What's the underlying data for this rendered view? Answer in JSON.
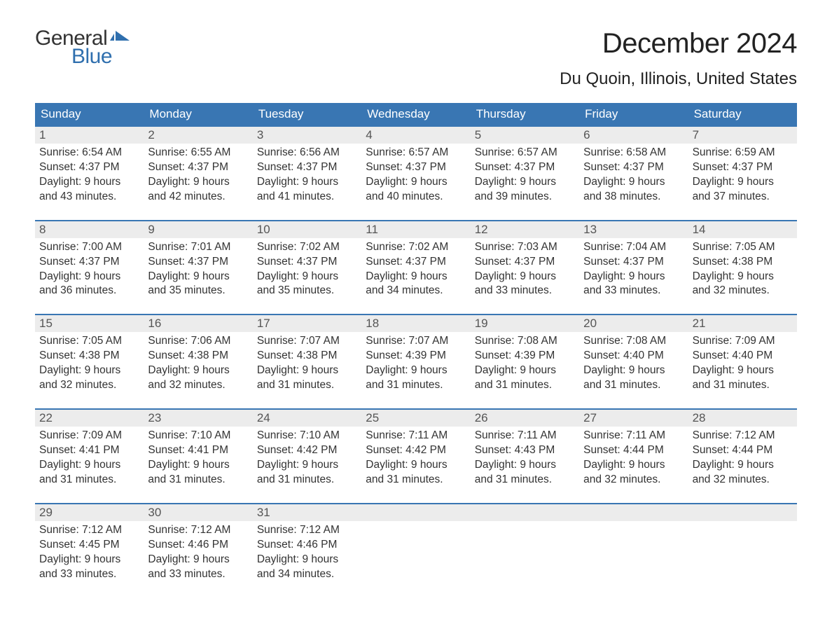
{
  "logo": {
    "text_general": "General",
    "text_blue": "Blue",
    "flag_color": "#2f6fae"
  },
  "header": {
    "month_title": "December 2024",
    "location": "Du Quoin, Illinois, United States"
  },
  "styling": {
    "page_bg": "#ffffff",
    "header_bar_bg": "#3976b3",
    "header_bar_text": "#ffffff",
    "daynum_bg": "#ececec",
    "daynum_text": "#555555",
    "body_text": "#333333",
    "week_border": "#3976b3",
    "title_fontsize": 40,
    "location_fontsize": 24,
    "dow_fontsize": 17,
    "daynum_fontsize": 17,
    "body_fontsize": 15.5,
    "columns": 7
  },
  "days_of_week": [
    "Sunday",
    "Monday",
    "Tuesday",
    "Wednesday",
    "Thursday",
    "Friday",
    "Saturday"
  ],
  "weeks": [
    [
      {
        "n": "1",
        "sunrise": "Sunrise: 6:54 AM",
        "sunset": "Sunset: 4:37 PM",
        "d1": "Daylight: 9 hours",
        "d2": "and 43 minutes."
      },
      {
        "n": "2",
        "sunrise": "Sunrise: 6:55 AM",
        "sunset": "Sunset: 4:37 PM",
        "d1": "Daylight: 9 hours",
        "d2": "and 42 minutes."
      },
      {
        "n": "3",
        "sunrise": "Sunrise: 6:56 AM",
        "sunset": "Sunset: 4:37 PM",
        "d1": "Daylight: 9 hours",
        "d2": "and 41 minutes."
      },
      {
        "n": "4",
        "sunrise": "Sunrise: 6:57 AM",
        "sunset": "Sunset: 4:37 PM",
        "d1": "Daylight: 9 hours",
        "d2": "and 40 minutes."
      },
      {
        "n": "5",
        "sunrise": "Sunrise: 6:57 AM",
        "sunset": "Sunset: 4:37 PM",
        "d1": "Daylight: 9 hours",
        "d2": "and 39 minutes."
      },
      {
        "n": "6",
        "sunrise": "Sunrise: 6:58 AM",
        "sunset": "Sunset: 4:37 PM",
        "d1": "Daylight: 9 hours",
        "d2": "and 38 minutes."
      },
      {
        "n": "7",
        "sunrise": "Sunrise: 6:59 AM",
        "sunset": "Sunset: 4:37 PM",
        "d1": "Daylight: 9 hours",
        "d2": "and 37 minutes."
      }
    ],
    [
      {
        "n": "8",
        "sunrise": "Sunrise: 7:00 AM",
        "sunset": "Sunset: 4:37 PM",
        "d1": "Daylight: 9 hours",
        "d2": "and 36 minutes."
      },
      {
        "n": "9",
        "sunrise": "Sunrise: 7:01 AM",
        "sunset": "Sunset: 4:37 PM",
        "d1": "Daylight: 9 hours",
        "d2": "and 35 minutes."
      },
      {
        "n": "10",
        "sunrise": "Sunrise: 7:02 AM",
        "sunset": "Sunset: 4:37 PM",
        "d1": "Daylight: 9 hours",
        "d2": "and 35 minutes."
      },
      {
        "n": "11",
        "sunrise": "Sunrise: 7:02 AM",
        "sunset": "Sunset: 4:37 PM",
        "d1": "Daylight: 9 hours",
        "d2": "and 34 minutes."
      },
      {
        "n": "12",
        "sunrise": "Sunrise: 7:03 AM",
        "sunset": "Sunset: 4:37 PM",
        "d1": "Daylight: 9 hours",
        "d2": "and 33 minutes."
      },
      {
        "n": "13",
        "sunrise": "Sunrise: 7:04 AM",
        "sunset": "Sunset: 4:37 PM",
        "d1": "Daylight: 9 hours",
        "d2": "and 33 minutes."
      },
      {
        "n": "14",
        "sunrise": "Sunrise: 7:05 AM",
        "sunset": "Sunset: 4:38 PM",
        "d1": "Daylight: 9 hours",
        "d2": "and 32 minutes."
      }
    ],
    [
      {
        "n": "15",
        "sunrise": "Sunrise: 7:05 AM",
        "sunset": "Sunset: 4:38 PM",
        "d1": "Daylight: 9 hours",
        "d2": "and 32 minutes."
      },
      {
        "n": "16",
        "sunrise": "Sunrise: 7:06 AM",
        "sunset": "Sunset: 4:38 PM",
        "d1": "Daylight: 9 hours",
        "d2": "and 32 minutes."
      },
      {
        "n": "17",
        "sunrise": "Sunrise: 7:07 AM",
        "sunset": "Sunset: 4:38 PM",
        "d1": "Daylight: 9 hours",
        "d2": "and 31 minutes."
      },
      {
        "n": "18",
        "sunrise": "Sunrise: 7:07 AM",
        "sunset": "Sunset: 4:39 PM",
        "d1": "Daylight: 9 hours",
        "d2": "and 31 minutes."
      },
      {
        "n": "19",
        "sunrise": "Sunrise: 7:08 AM",
        "sunset": "Sunset: 4:39 PM",
        "d1": "Daylight: 9 hours",
        "d2": "and 31 minutes."
      },
      {
        "n": "20",
        "sunrise": "Sunrise: 7:08 AM",
        "sunset": "Sunset: 4:40 PM",
        "d1": "Daylight: 9 hours",
        "d2": "and 31 minutes."
      },
      {
        "n": "21",
        "sunrise": "Sunrise: 7:09 AM",
        "sunset": "Sunset: 4:40 PM",
        "d1": "Daylight: 9 hours",
        "d2": "and 31 minutes."
      }
    ],
    [
      {
        "n": "22",
        "sunrise": "Sunrise: 7:09 AM",
        "sunset": "Sunset: 4:41 PM",
        "d1": "Daylight: 9 hours",
        "d2": "and 31 minutes."
      },
      {
        "n": "23",
        "sunrise": "Sunrise: 7:10 AM",
        "sunset": "Sunset: 4:41 PM",
        "d1": "Daylight: 9 hours",
        "d2": "and 31 minutes."
      },
      {
        "n": "24",
        "sunrise": "Sunrise: 7:10 AM",
        "sunset": "Sunset: 4:42 PM",
        "d1": "Daylight: 9 hours",
        "d2": "and 31 minutes."
      },
      {
        "n": "25",
        "sunrise": "Sunrise: 7:11 AM",
        "sunset": "Sunset: 4:42 PM",
        "d1": "Daylight: 9 hours",
        "d2": "and 31 minutes."
      },
      {
        "n": "26",
        "sunrise": "Sunrise: 7:11 AM",
        "sunset": "Sunset: 4:43 PM",
        "d1": "Daylight: 9 hours",
        "d2": "and 31 minutes."
      },
      {
        "n": "27",
        "sunrise": "Sunrise: 7:11 AM",
        "sunset": "Sunset: 4:44 PM",
        "d1": "Daylight: 9 hours",
        "d2": "and 32 minutes."
      },
      {
        "n": "28",
        "sunrise": "Sunrise: 7:12 AM",
        "sunset": "Sunset: 4:44 PM",
        "d1": "Daylight: 9 hours",
        "d2": "and 32 minutes."
      }
    ],
    [
      {
        "n": "29",
        "sunrise": "Sunrise: 7:12 AM",
        "sunset": "Sunset: 4:45 PM",
        "d1": "Daylight: 9 hours",
        "d2": "and 33 minutes."
      },
      {
        "n": "30",
        "sunrise": "Sunrise: 7:12 AM",
        "sunset": "Sunset: 4:46 PM",
        "d1": "Daylight: 9 hours",
        "d2": "and 33 minutes."
      },
      {
        "n": "31",
        "sunrise": "Sunrise: 7:12 AM",
        "sunset": "Sunset: 4:46 PM",
        "d1": "Daylight: 9 hours",
        "d2": "and 34 minutes."
      },
      null,
      null,
      null,
      null
    ]
  ]
}
